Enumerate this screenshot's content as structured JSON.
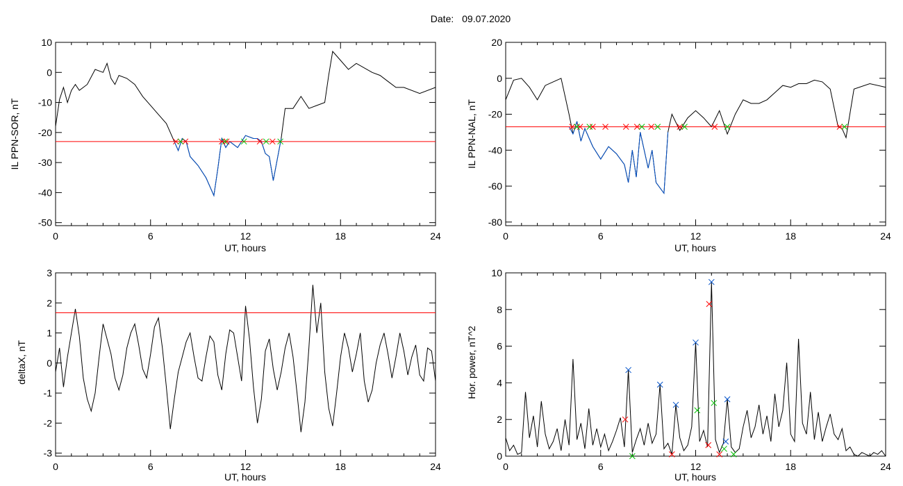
{
  "header": {
    "date_label": "Date:",
    "date_value": "09.07.2020"
  },
  "colors": {
    "trace": "#000000",
    "highlight": "#0050c8",
    "threshold": "#ff0000",
    "marker_red": "#ff0000",
    "marker_green": "#00c000",
    "marker_blue": "#0050c8"
  },
  "chart_data": [
    {
      "id": "il-sor",
      "type": "line",
      "title": "",
      "xlabel": "UT, hours",
      "ylabel": "IL PPN-SOR, nT",
      "xlim": [
        0,
        24
      ],
      "ylim": [
        -51,
        10
      ],
      "xticks": [
        0,
        6,
        12,
        18,
        24
      ],
      "yticks": [
        10,
        0,
        -10,
        -20,
        -30,
        -40,
        -50
      ],
      "threshold": -23,
      "series": [
        {
          "type": "line",
          "color": "black",
          "x": [
            0,
            0.25,
            0.5,
            0.75,
            1,
            1.25,
            1.5,
            1.75,
            2,
            2.5,
            3,
            3.25,
            3.5,
            3.75,
            4,
            4.5,
            5,
            5.5,
            6,
            6.5,
            7,
            7.25,
            7.5,
            7.75,
            8,
            8.25,
            8.5,
            9,
            9.5,
            10,
            10.25,
            10.5,
            10.75,
            11,
            11.5,
            12,
            12.5,
            12.75,
            13,
            13.25,
            13.5,
            13.75,
            14,
            14.25,
            14.5,
            15,
            15.5,
            16,
            16.5,
            17,
            17.25,
            17.5,
            18,
            18.5,
            19,
            20,
            20.5,
            21,
            21.5,
            22,
            23,
            24
          ],
          "y": [
            -18,
            -9,
            -5,
            -10,
            -6,
            -4,
            -6,
            -5,
            -4,
            1,
            0,
            3,
            -2,
            -4,
            -1,
            -2,
            -4,
            -8,
            -11,
            -14,
            -17,
            -20,
            -23,
            -26,
            -22,
            -23,
            -28,
            -31,
            -35,
            -41,
            -32,
            -22,
            -25,
            -23,
            -25,
            -21,
            -22,
            -22,
            -23,
            -27,
            -28,
            -36,
            -29,
            -22,
            -12,
            -12,
            -8,
            -12,
            -11,
            -10,
            -1,
            7,
            4,
            1,
            3,
            0,
            -1,
            -3,
            -5,
            -5,
            -7,
            -5
          ]
        },
        {
          "type": "line",
          "color": "blue",
          "x": [
            7.5,
            7.75,
            8,
            8.25,
            8.5,
            9,
            9.5,
            10,
            10.25,
            10.5,
            10.75,
            11,
            11.5,
            12,
            12.5,
            12.75,
            13,
            13.25,
            13.5,
            13.75,
            14,
            14.25
          ],
          "y": [
            -23,
            -26,
            -22,
            -23,
            -28,
            -31,
            -35,
            -41,
            -32,
            -22,
            -25,
            -23,
            -25,
            -21,
            -22,
            -22,
            -23,
            -27,
            -28,
            -36,
            -29,
            -22
          ]
        }
      ],
      "markers": [
        {
          "x": 7.6,
          "y": -23,
          "color": "red"
        },
        {
          "x": 8.2,
          "y": -23,
          "color": "red"
        },
        {
          "x": 10.5,
          "y": -23,
          "color": "red"
        },
        {
          "x": 10.8,
          "y": -23,
          "color": "red"
        },
        {
          "x": 12.9,
          "y": -23,
          "color": "red"
        },
        {
          "x": 13.7,
          "y": -23,
          "color": "red"
        },
        {
          "x": 7.9,
          "y": -23,
          "color": "green"
        },
        {
          "x": 10.7,
          "y": -23,
          "color": "green"
        },
        {
          "x": 11.9,
          "y": -23,
          "color": "green"
        },
        {
          "x": 13.3,
          "y": -23,
          "color": "green"
        },
        {
          "x": 14.2,
          "y": -23,
          "color": "green"
        }
      ]
    },
    {
      "id": "il-nal",
      "type": "line",
      "title": "",
      "xlabel": "UT, hours",
      "ylabel": "IL PPN-NAL, nT",
      "xlim": [
        0,
        24
      ],
      "ylim": [
        -82,
        20
      ],
      "xticks": [
        0,
        6,
        12,
        18,
        24
      ],
      "yticks": [
        20,
        0,
        -20,
        -40,
        -60,
        -80
      ],
      "threshold": -27,
      "series": [
        {
          "type": "line",
          "color": "black",
          "x": [
            0,
            0.5,
            1,
            1.5,
            2,
            2.5,
            3,
            3.5,
            4,
            4.25,
            4.5,
            4.75,
            5,
            5.5,
            6,
            6.5,
            7,
            7.5,
            7.75,
            8,
            8.25,
            8.5,
            9,
            9.25,
            9.5,
            10,
            10.25,
            10.5,
            11,
            11.5,
            12,
            12.5,
            13,
            13.5,
            14,
            14.5,
            15,
            15.5,
            16,
            16.5,
            17,
            17.5,
            18,
            18.5,
            19,
            19.5,
            20,
            20.5,
            21,
            21.25,
            21.5,
            22,
            23,
            24
          ],
          "y": [
            -12,
            -1,
            0,
            -5,
            -12,
            -4,
            -2,
            0,
            -20,
            -31,
            -24,
            -35,
            -28,
            -38,
            -45,
            -38,
            -42,
            -48,
            -58,
            -40,
            -55,
            -30,
            -50,
            -40,
            -58,
            -64,
            -30,
            -20,
            -29,
            -22,
            -18,
            -22,
            -27,
            -18,
            -31,
            -20,
            -12,
            -14,
            -14,
            -12,
            -8,
            -4,
            -5,
            -3,
            -3,
            -1,
            -2,
            -6,
            -27,
            -28,
            -33,
            -6,
            -3,
            -5
          ]
        },
        {
          "type": "line",
          "color": "blue",
          "x": [
            4,
            4.25,
            4.5,
            4.75,
            5,
            5.5,
            6,
            6.5,
            7,
            7.5,
            7.75,
            8,
            8.25,
            8.5,
            9,
            9.25,
            9.5,
            10,
            10.25
          ],
          "y": [
            -27,
            -31,
            -24,
            -35,
            -28,
            -38,
            -45,
            -38,
            -42,
            -48,
            -58,
            -40,
            -55,
            -30,
            -50,
            -40,
            -58,
            -64,
            -30
          ]
        }
      ],
      "markers": [
        {
          "x": 4.2,
          "y": -27,
          "color": "red"
        },
        {
          "x": 4.7,
          "y": -27,
          "color": "red"
        },
        {
          "x": 5.5,
          "y": -27,
          "color": "red"
        },
        {
          "x": 6.3,
          "y": -27,
          "color": "red"
        },
        {
          "x": 7.6,
          "y": -27,
          "color": "red"
        },
        {
          "x": 8.3,
          "y": -27,
          "color": "red"
        },
        {
          "x": 9.2,
          "y": -27,
          "color": "red"
        },
        {
          "x": 11.0,
          "y": -27,
          "color": "red"
        },
        {
          "x": 13.2,
          "y": -27,
          "color": "red"
        },
        {
          "x": 21.1,
          "y": -27,
          "color": "red"
        },
        {
          "x": 4.5,
          "y": -27,
          "color": "green"
        },
        {
          "x": 5.3,
          "y": -27,
          "color": "green"
        },
        {
          "x": 8.6,
          "y": -27,
          "color": "green"
        },
        {
          "x": 9.6,
          "y": -27,
          "color": "green"
        },
        {
          "x": 11.3,
          "y": -27,
          "color": "green"
        },
        {
          "x": 14.0,
          "y": -27,
          "color": "green"
        },
        {
          "x": 21.4,
          "y": -27,
          "color": "green"
        }
      ]
    },
    {
      "id": "delta-x",
      "type": "line",
      "title": "",
      "xlabel": "UT, hours",
      "ylabel": "deltaX, nT",
      "xlim": [
        0,
        24
      ],
      "ylim": [
        -3.1,
        3
      ],
      "xticks": [
        0,
        6,
        12,
        18,
        24
      ],
      "yticks": [
        3,
        2,
        1,
        0,
        -1,
        -2,
        -3
      ],
      "threshold": 1.67,
      "series": [
        {
          "type": "line",
          "color": "black",
          "x": [
            0,
            0.25,
            0.5,
            0.75,
            1,
            1.25,
            1.5,
            1.75,
            2,
            2.25,
            2.5,
            2.75,
            3,
            3.25,
            3.5,
            3.75,
            4,
            4.25,
            4.5,
            4.75,
            5,
            5.25,
            5.5,
            5.75,
            6,
            6.25,
            6.5,
            6.75,
            7,
            7.25,
            7.5,
            7.75,
            8,
            8.25,
            8.5,
            8.75,
            9,
            9.25,
            9.5,
            9.75,
            10,
            10.25,
            10.5,
            10.75,
            11,
            11.25,
            11.5,
            11.75,
            12,
            12.25,
            12.5,
            12.75,
            13,
            13.25,
            13.5,
            13.75,
            14,
            14.25,
            14.5,
            14.75,
            15,
            15.25,
            15.5,
            15.75,
            16,
            16.25,
            16.5,
            16.75,
            17,
            17.25,
            17.5,
            17.75,
            18,
            18.25,
            18.5,
            18.75,
            19,
            19.25,
            19.5,
            19.75,
            20,
            20.25,
            20.5,
            20.75,
            21,
            21.25,
            21.5,
            21.75,
            22,
            22.25,
            22.5,
            22.75,
            23,
            23.25,
            23.5,
            23.75,
            24
          ],
          "y": [
            -0.3,
            0.5,
            -0.8,
            0.2,
            1.0,
            1.8,
            0.9,
            -0.5,
            -1.2,
            -1.6,
            -1.0,
            0.2,
            1.3,
            0.8,
            0.3,
            -0.5,
            -0.9,
            -0.4,
            0.5,
            1.0,
            1.3,
            0.6,
            -0.2,
            -0.5,
            0.3,
            1.2,
            1.5,
            0.5,
            -0.8,
            -2.2,
            -1.2,
            -0.3,
            0.2,
            0.7,
            1.0,
            0.2,
            -0.5,
            -0.6,
            0.2,
            0.9,
            0.7,
            -0.4,
            -0.9,
            0.3,
            1.1,
            1.0,
            0.2,
            -0.6,
            1.9,
            0.8,
            -0.8,
            -2.0,
            -1.2,
            0.4,
            0.8,
            -0.2,
            -0.9,
            -0.3,
            0.5,
            1.0,
            0.2,
            -1.0,
            -2.3,
            -1.3,
            0.5,
            2.6,
            1.0,
            2.0,
            -0.3,
            -1.5,
            -2.1,
            -1.0,
            0.2,
            1.0,
            0.5,
            -0.3,
            0.3,
            1.0,
            -0.6,
            -1.3,
            -0.9,
            0.0,
            0.6,
            1.0,
            0.3,
            -0.5,
            0.2,
            1.0,
            0.4,
            -0.4,
            0.2,
            0.6,
            -0.4,
            -0.6,
            0.5,
            0.4,
            -0.6
          ]
        }
      ]
    },
    {
      "id": "hor-power",
      "type": "line",
      "title": "",
      "xlabel": "UT, hours",
      "ylabel": "Hor. power, nT^2",
      "xlim": [
        0,
        24
      ],
      "ylim": [
        0,
        10
      ],
      "xticks": [
        0,
        6,
        12,
        18,
        24
      ],
      "yticks": [
        10,
        8,
        6,
        4,
        2,
        0
      ],
      "series": [
        {
          "type": "line",
          "color": "black",
          "x": [
            0,
            0.25,
            0.5,
            0.75,
            1,
            1.25,
            1.5,
            1.75,
            2,
            2.25,
            2.5,
            2.75,
            3,
            3.25,
            3.5,
            3.75,
            4,
            4.25,
            4.5,
            4.75,
            5,
            5.25,
            5.5,
            5.75,
            6,
            6.25,
            6.5,
            6.75,
            7,
            7.25,
            7.5,
            7.75,
            8,
            8.25,
            8.5,
            8.75,
            9,
            9.25,
            9.5,
            9.75,
            10,
            10.25,
            10.5,
            10.75,
            11,
            11.25,
            11.5,
            11.75,
            12,
            12.25,
            12.5,
            12.75,
            13,
            13.25,
            13.5,
            13.75,
            14,
            14.25,
            14.5,
            14.75,
            15,
            15.25,
            15.5,
            15.75,
            16,
            16.25,
            16.5,
            16.75,
            17,
            17.25,
            17.5,
            17.75,
            18,
            18.25,
            18.5,
            18.75,
            19,
            19.25,
            19.5,
            19.75,
            20,
            20.25,
            20.5,
            20.75,
            21,
            21.25,
            21.5,
            21.75,
            22,
            22.25,
            22.5,
            22.75,
            23,
            23.25,
            23.5,
            23.75,
            24
          ],
          "y": [
            1.0,
            0.3,
            0.6,
            0.1,
            0.2,
            3.5,
            1.0,
            2.2,
            0.5,
            3.0,
            1.2,
            0.4,
            0.8,
            1.5,
            0.3,
            2.0,
            0.6,
            5.3,
            0.9,
            1.8,
            0.4,
            2.6,
            0.6,
            1.5,
            0.5,
            1.2,
            0.3,
            0.8,
            1.4,
            2.1,
            0.5,
            4.7,
            0.2,
            0.9,
            1.5,
            0.6,
            1.8,
            0.7,
            1.2,
            3.9,
            0.4,
            0.7,
            0.1,
            2.8,
            1.0,
            0.3,
            0.6,
            1.6,
            6.2,
            0.8,
            1.4,
            0.5,
            9.5,
            0.9,
            0.2,
            0.7,
            3.1,
            0.5,
            0.2,
            0.4,
            1.6,
            2.5,
            1.0,
            1.6,
            2.8,
            1.2,
            2.2,
            0.8,
            3.4,
            1.6,
            2.5,
            5.1,
            1.2,
            0.8,
            6.4,
            1.8,
            1.2,
            3.5,
            0.9,
            2.4,
            0.8,
            1.6,
            2.3,
            1.2,
            0.9,
            1.5,
            0.3,
            0.5,
            0.1,
            0.0,
            0.2,
            0.1,
            0.0,
            0.2,
            0.1,
            0.3,
            0.0
          ]
        }
      ],
      "markers": [
        {
          "x": 7.75,
          "y": 4.7,
          "color": "blue"
        },
        {
          "x": 9.75,
          "y": 3.9,
          "color": "blue"
        },
        {
          "x": 10.75,
          "y": 2.8,
          "color": "blue"
        },
        {
          "x": 12.0,
          "y": 6.2,
          "color": "blue"
        },
        {
          "x": 13.0,
          "y": 9.5,
          "color": "blue"
        },
        {
          "x": 14.0,
          "y": 3.1,
          "color": "blue"
        },
        {
          "x": 13.9,
          "y": 0.8,
          "color": "blue"
        },
        {
          "x": 7.55,
          "y": 2.0,
          "color": "red"
        },
        {
          "x": 12.85,
          "y": 8.3,
          "color": "red"
        },
        {
          "x": 12.8,
          "y": 0.6,
          "color": "red"
        },
        {
          "x": 10.5,
          "y": 0.1,
          "color": "red"
        },
        {
          "x": 13.5,
          "y": 0.1,
          "color": "red"
        },
        {
          "x": 12.1,
          "y": 2.5,
          "color": "green"
        },
        {
          "x": 13.15,
          "y": 2.9,
          "color": "green"
        },
        {
          "x": 8.0,
          "y": 0.0,
          "color": "green"
        },
        {
          "x": 13.8,
          "y": 0.4,
          "color": "green"
        },
        {
          "x": 14.4,
          "y": 0.1,
          "color": "green"
        }
      ]
    }
  ]
}
